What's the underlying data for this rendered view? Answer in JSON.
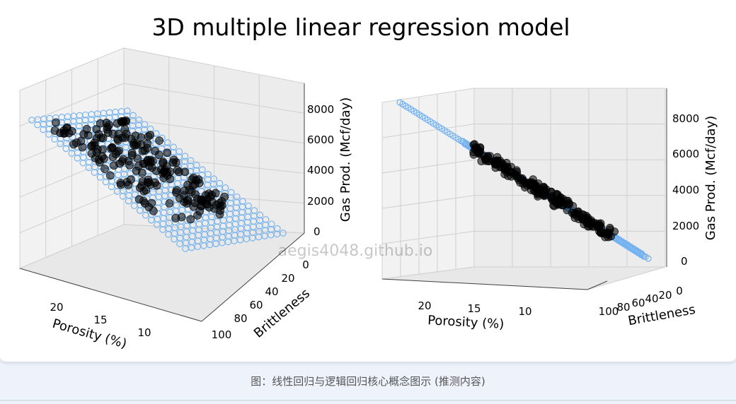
{
  "title": "3D multiple linear regression model",
  "caption": "图：线性回归与逻辑回归核心概念图示 (推测内容)",
  "watermark": "aegis4048.github.io",
  "colors": {
    "plane": "#70b0f0",
    "points": "#000000",
    "pane": "#f2f2f2",
    "grid": "#cfcfcf"
  },
  "chart_data": [
    {
      "type": "scatter",
      "view": "left",
      "title": "",
      "xlabel": "Porosity (%)",
      "ylabel": "Brittleness",
      "zlabel": "Gas Prod. (Mcf/day)",
      "x_ticks": [
        "20",
        "15",
        "10"
      ],
      "y_ticks": [
        "0",
        "20",
        "40",
        "60",
        "80",
        "100"
      ],
      "z_ticks": [
        "0",
        "2000",
        "4000",
        "6000",
        "8000"
      ],
      "xlim": [
        6,
        24
      ],
      "ylim": [
        0,
        100
      ],
      "zlim": [
        -500,
        9000
      ],
      "series": [
        {
          "kind": "regression-plane",
          "marker": "open-circle",
          "color": "#70b0f0"
        },
        {
          "kind": "observed-wells",
          "marker": "filled-circle",
          "color": "#000000"
        }
      ]
    },
    {
      "type": "scatter",
      "view": "right",
      "title": "",
      "xlabel": "Porosity (%)",
      "ylabel": "Brittleness",
      "zlabel": "Gas Prod. (Mcf/day)",
      "x_ticks": [
        "20",
        "15",
        "10"
      ],
      "y_ticks": [
        "100",
        "80",
        "60",
        "40",
        "20",
        "0"
      ],
      "z_ticks": [
        "0",
        "2000",
        "4000",
        "6000",
        "8000"
      ],
      "xlim": [
        6,
        24
      ],
      "ylim": [
        0,
        100
      ],
      "zlim": [
        -500,
        9000
      ],
      "series": [
        {
          "kind": "regression-plane",
          "marker": "open-circle",
          "color": "#70b0f0"
        },
        {
          "kind": "observed-wells",
          "marker": "filled-circle",
          "color": "#000000"
        }
      ]
    }
  ]
}
